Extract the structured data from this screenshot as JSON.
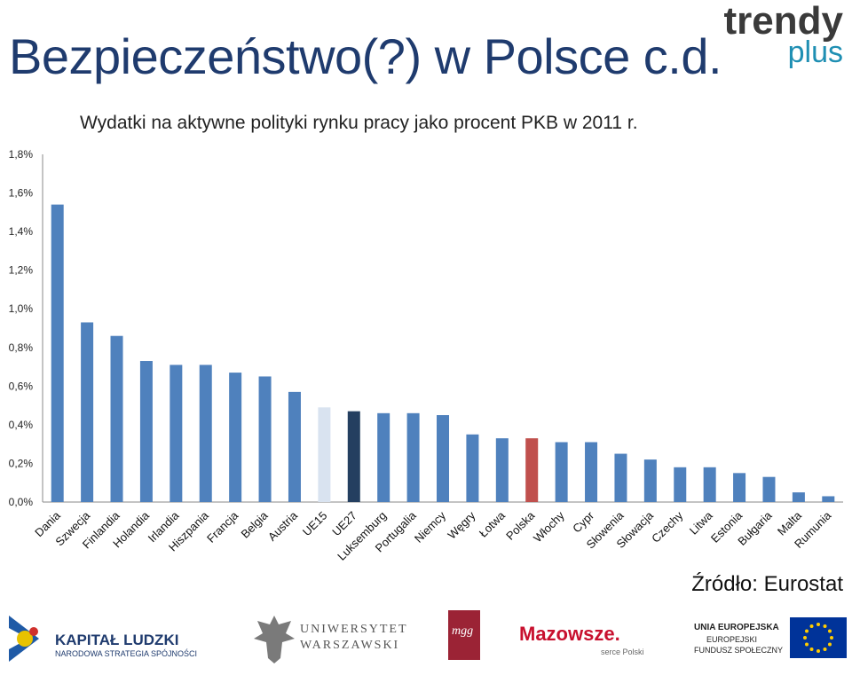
{
  "slide": {
    "title": "Bezpieczeństwo(?) w Polsce c.d.",
    "brand_main": "trendy",
    "brand_sub": "plus",
    "source": "Źródło: Eurostat"
  },
  "footer": {
    "logo1_main": "KAPITAŁ LUDZKI",
    "logo1_sub": "NARODOWA STRATEGIA SPÓJNOŚCI",
    "logo2_main": "UNIWERSYTET",
    "logo2_sub": "WARSZAWSKI",
    "logo3_text": "mgg",
    "logo4_main": "Mazowsze.",
    "logo4_sub": "serce Polski",
    "logo5_line1": "UNIA EUROPEJSKA",
    "logo5_line2": "EUROPEJSKI",
    "logo5_line3": "FUNDUSZ SPOŁECZNY"
  },
  "colors": {
    "bar_default": "#4f81bd",
    "bar_ue15": "#d9e3f0",
    "bar_ue27": "#243f60",
    "bar_polska": "#c0504d",
    "title": "#1f3b6e"
  },
  "chart_data": {
    "type": "bar",
    "title": "Wydatki na aktywne polityki rynku pracy jako procent PKB w 2011 r.",
    "xlabel": "",
    "ylabel": "",
    "ylim": [
      0,
      1.8
    ],
    "y_ticks": [
      "0,0%",
      "0,2%",
      "0,4%",
      "0,6%",
      "0,8%",
      "1,0%",
      "1,2%",
      "1,4%",
      "1,6%",
      "1,8%"
    ],
    "y_tick_values": [
      0,
      0.2,
      0.4,
      0.6,
      0.8,
      1.0,
      1.2,
      1.4,
      1.6,
      1.8
    ],
    "grid": false,
    "legend": "none",
    "categories": [
      "Dania",
      "Szwecja",
      "Finlandia",
      "Holandia",
      "Irlandia",
      "Hiszpania",
      "Francja",
      "Belgia",
      "Austria",
      "UE15",
      "UE27",
      "Luksemburg",
      "Portugalia",
      "Niemcy",
      "Węgry",
      "Łotwa",
      "Polska",
      "Włochy",
      "Cypr",
      "Słowenia",
      "Słowacja",
      "Czechy",
      "Litwa",
      "Estonia",
      "Bułgaria",
      "Malta",
      "Rumunia"
    ],
    "values": [
      1.54,
      0.93,
      0.86,
      0.73,
      0.71,
      0.71,
      0.67,
      0.65,
      0.57,
      0.49,
      0.47,
      0.46,
      0.46,
      0.45,
      0.35,
      0.33,
      0.33,
      0.31,
      0.31,
      0.25,
      0.22,
      0.18,
      0.18,
      0.15,
      0.13,
      0.05,
      0.03
    ],
    "highlight": {
      "UE15": "bar_ue15",
      "UE27": "bar_ue27",
      "Polska": "bar_polska"
    }
  }
}
